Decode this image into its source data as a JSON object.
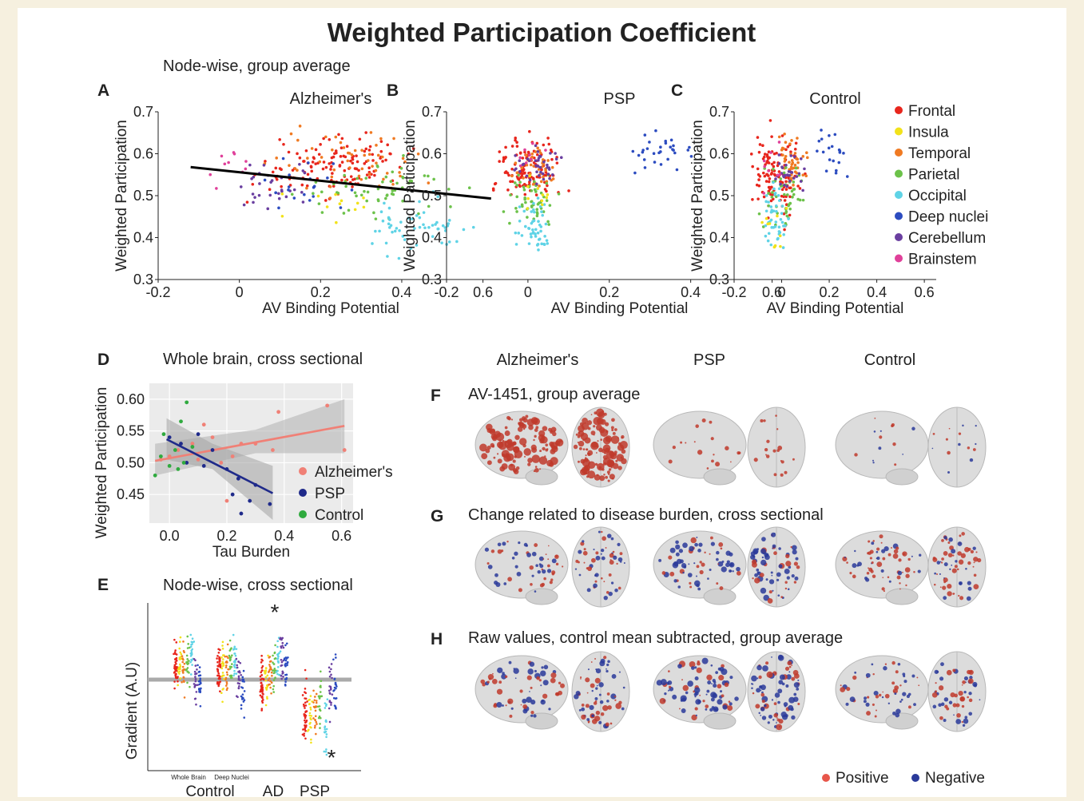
{
  "figure": {
    "title": "Weighted Participation Coefficient",
    "region_colors": {
      "Frontal": "#e8261d",
      "Insula": "#f2e21a",
      "Temporal": "#f07a22",
      "Parietal": "#6cc24a",
      "Occipital": "#5fd3e6",
      "Deep nuclei": "#2c4cc0",
      "Cerebellum": "#6a3fa0",
      "Brainstem": "#e0409a"
    },
    "panel_A_heading": "Node-wise, group average",
    "panel_D_heading": "Whole brain, cross sectional",
    "panel_E_heading": "Node-wise, cross sectional",
    "brain_column_headers": [
      "Alzheimer's",
      "PSP",
      "Control"
    ],
    "brain_rows": [
      {
        "letter": "F",
        "label": "AV-1451, group average"
      },
      {
        "letter": "G",
        "label": "Change related to disease burden, cross sectional"
      },
      {
        "letter": "H",
        "label": "Raw values, control mean subtracted, group average"
      }
    ],
    "brain_legend": [
      {
        "label": "Positive",
        "color": "#e8564a"
      },
      {
        "label": "Negative",
        "color": "#2a3a9a"
      }
    ]
  },
  "chart_data": [
    {
      "panel": "A",
      "type": "scatter",
      "title": "Alzheimer's",
      "xlabel": "AV Binding Potential",
      "ylabel": "Weighted Participation",
      "xlim": [
        -0.2,
        0.65
      ],
      "ylim": [
        0.3,
        0.7
      ],
      "xticks": [
        "-0.2",
        "0",
        "0.2",
        "0.4",
        "0.6"
      ],
      "yticks": [
        "0.3",
        "0.4",
        "0.5",
        "0.6",
        "0.7"
      ],
      "clusters": [
        {
          "region": "Frontal",
          "x": [
            0.0,
            0.45
          ],
          "y": [
            0.48,
            0.66
          ],
          "n": 130
        },
        {
          "region": "Temporal",
          "x": [
            0.05,
            0.5
          ],
          "y": [
            0.48,
            0.68
          ],
          "n": 60
        },
        {
          "region": "Parietal",
          "x": [
            0.1,
            0.6
          ],
          "y": [
            0.42,
            0.6
          ],
          "n": 60
        },
        {
          "region": "Occipital",
          "x": [
            0.25,
            0.6
          ],
          "y": [
            0.32,
            0.52
          ],
          "n": 55
        },
        {
          "region": "Cerebellum",
          "x": [
            -0.05,
            0.2
          ],
          "y": [
            0.45,
            0.6
          ],
          "n": 30
        },
        {
          "region": "Deep nuclei",
          "x": [
            0.0,
            0.3
          ],
          "y": [
            0.45,
            0.6
          ],
          "n": 20
        },
        {
          "region": "Insula",
          "x": [
            0.05,
            0.45
          ],
          "y": [
            0.42,
            0.55
          ],
          "n": 12
        },
        {
          "region": "Brainstem",
          "x": [
            -0.1,
            0.1
          ],
          "y": [
            0.5,
            0.64
          ],
          "n": 10
        }
      ],
      "fit_line": {
        "x": [
          -0.12,
          0.62
        ],
        "y": [
          0.568,
          0.493
        ]
      }
    },
    {
      "panel": "B",
      "type": "scatter",
      "title": "PSP",
      "xlabel": "AV Binding Potential",
      "ylabel": "Weighted Participation",
      "xlim": [
        -0.2,
        0.65
      ],
      "ylim": [
        0.3,
        0.7
      ],
      "xticks": [
        "-0.2",
        "0",
        "0.2",
        "0.4",
        "0.6"
      ],
      "yticks": [
        "0.3",
        "0.4",
        "0.5",
        "0.6",
        "0.7"
      ],
      "clusters": [
        {
          "region": "Frontal",
          "x": [
            -0.1,
            0.1
          ],
          "y": [
            0.46,
            0.66
          ],
          "n": 120
        },
        {
          "region": "Temporal",
          "x": [
            -0.05,
            0.1
          ],
          "y": [
            0.5,
            0.64
          ],
          "n": 40
        },
        {
          "region": "Parietal",
          "x": [
            -0.08,
            0.08
          ],
          "y": [
            0.42,
            0.56
          ],
          "n": 50
        },
        {
          "region": "Occipital",
          "x": [
            -0.05,
            0.08
          ],
          "y": [
            0.34,
            0.52
          ],
          "n": 50
        },
        {
          "region": "Cerebellum",
          "x": [
            -0.05,
            0.1
          ],
          "y": [
            0.5,
            0.64
          ],
          "n": 40
        },
        {
          "region": "Deep nuclei",
          "x": [
            0.2,
            0.45
          ],
          "y": [
            0.54,
            0.67
          ],
          "n": 30
        },
        {
          "region": "Insula",
          "x": [
            -0.05,
            0.08
          ],
          "y": [
            0.44,
            0.56
          ],
          "n": 10
        },
        {
          "region": "Brainstem",
          "x": [
            -0.05,
            0.05
          ],
          "y": [
            0.55,
            0.65
          ],
          "n": 8
        }
      ]
    },
    {
      "panel": "C",
      "type": "scatter",
      "title": "Control",
      "xlabel": "AV Binding Potential",
      "ylabel": "Weighted Participation",
      "xlim": [
        -0.2,
        0.65
      ],
      "ylim": [
        0.3,
        0.7
      ],
      "xticks": [
        "-0.2",
        "0",
        "0.2",
        "0.4",
        "0.6"
      ],
      "yticks": [
        "0.3",
        "0.4",
        "0.5",
        "0.6",
        "0.7"
      ],
      "clusters": [
        {
          "region": "Frontal",
          "x": [
            -0.15,
            0.1
          ],
          "y": [
            0.42,
            0.68
          ],
          "n": 120
        },
        {
          "region": "Temporal",
          "x": [
            -0.05,
            0.12
          ],
          "y": [
            0.5,
            0.66
          ],
          "n": 45
        },
        {
          "region": "Parietal",
          "x": [
            -0.1,
            0.12
          ],
          "y": [
            0.4,
            0.6
          ],
          "n": 50
        },
        {
          "region": "Occipital",
          "x": [
            -0.1,
            0.05
          ],
          "y": [
            0.34,
            0.55
          ],
          "n": 45
        },
        {
          "region": "Cerebellum",
          "x": [
            -0.05,
            0.12
          ],
          "y": [
            0.48,
            0.62
          ],
          "n": 30
        },
        {
          "region": "Deep nuclei",
          "x": [
            0.1,
            0.35
          ],
          "y": [
            0.52,
            0.67
          ],
          "n": 20
        },
        {
          "region": "Insula",
          "x": [
            -0.1,
            0.05
          ],
          "y": [
            0.33,
            0.5
          ],
          "n": 10
        },
        {
          "region": "Brainstem",
          "x": [
            -0.12,
            0.05
          ],
          "y": [
            0.5,
            0.65
          ],
          "n": 8
        }
      ]
    },
    {
      "panel": "D",
      "type": "scatter",
      "xlabel": "Tau Burden",
      "ylabel": "Weighted Participation",
      "xlim": [
        -0.07,
        0.64
      ],
      "ylim": [
        0.405,
        0.625
      ],
      "xticks": [
        "0.0",
        "0.2",
        "0.4",
        "0.6"
      ],
      "yticks": [
        "0.45",
        "0.50",
        "0.55",
        "0.60"
      ],
      "series": [
        {
          "name": "Alzheimer's",
          "color": "#f08076",
          "points": [
            [
              -0.03,
              0.505
            ],
            [
              0.0,
              0.51
            ],
            [
              0.03,
              0.52
            ],
            [
              0.08,
              0.53
            ],
            [
              0.1,
              0.505
            ],
            [
              0.15,
              0.54
            ],
            [
              0.18,
              0.5
            ],
            [
              0.22,
              0.51
            ],
            [
              0.25,
              0.53
            ],
            [
              0.3,
              0.53
            ],
            [
              0.36,
              0.52
            ],
            [
              0.38,
              0.58
            ],
            [
              0.55,
              0.59
            ],
            [
              0.61,
              0.52
            ],
            [
              0.2,
              0.44
            ],
            [
              0.12,
              0.56
            ]
          ],
          "fit": {
            "x": [
              -0.05,
              0.61
            ],
            "y": [
              0.503,
              0.558
            ]
          }
        },
        {
          "name": "PSP",
          "color": "#1f2a8a",
          "points": [
            [
              0.0,
              0.54
            ],
            [
              0.04,
              0.53
            ],
            [
              0.06,
              0.5
            ],
            [
              0.1,
              0.545
            ],
            [
              0.12,
              0.495
            ],
            [
              0.15,
              0.52
            ],
            [
              0.2,
              0.49
            ],
            [
              0.24,
              0.475
            ],
            [
              0.28,
              0.44
            ],
            [
              0.25,
              0.42
            ],
            [
              0.3,
              0.465
            ],
            [
              0.35,
              0.435
            ],
            [
              0.22,
              0.45
            ]
          ],
          "fit": {
            "x": [
              -0.01,
              0.36
            ],
            "y": [
              0.537,
              0.452
            ]
          }
        },
        {
          "name": "Control",
          "color": "#2faa3e",
          "points": [
            [
              -0.05,
              0.48
            ],
            [
              -0.03,
              0.51
            ],
            [
              0.0,
              0.495
            ],
            [
              0.02,
              0.52
            ],
            [
              0.04,
              0.565
            ],
            [
              0.06,
              0.595
            ],
            [
              0.03,
              0.49
            ],
            [
              0.08,
              0.525
            ],
            [
              -0.02,
              0.545
            ],
            [
              0.05,
              0.5
            ]
          ]
        }
      ]
    },
    {
      "panel": "E",
      "type": "scatter",
      "ylabel": "Gradient (A.U)",
      "groups": [
        "Control",
        "AD",
        "PSP"
      ],
      "subgroups": [
        "Whole Brain",
        "Deep Nuclei"
      ],
      "annotations": [
        "*",
        "*"
      ]
    }
  ]
}
